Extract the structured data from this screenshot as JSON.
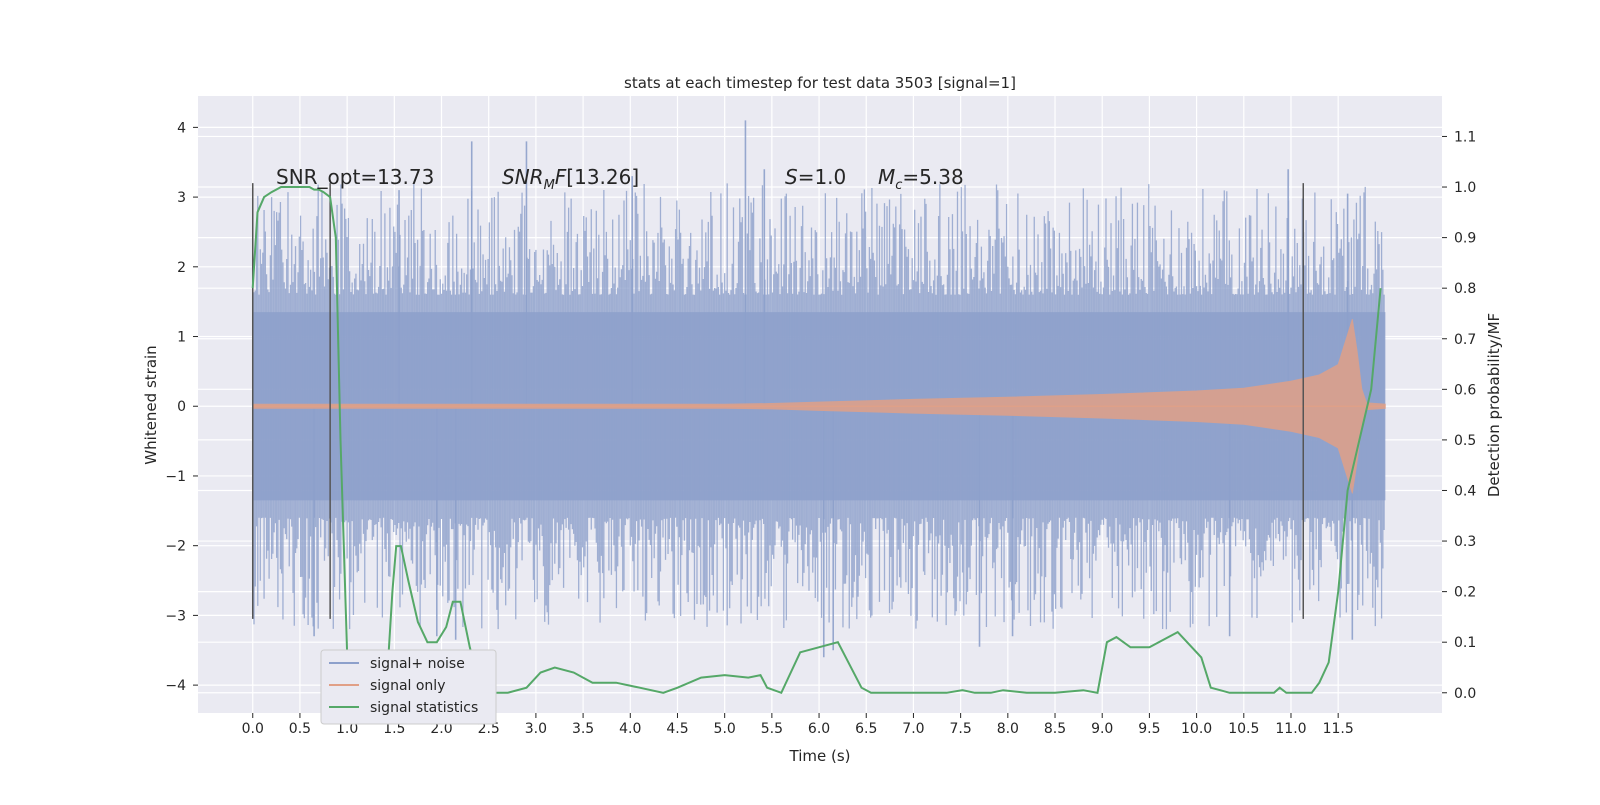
{
  "chart_data": {
    "type": "line",
    "title": "stats at each timestep for test data 3503 [signal=1]",
    "xlabel": "Time (s)",
    "ylabel": "Whitened strain",
    "ylabel_right": "Detection probability/MF",
    "xlim": [
      -0.58,
      12.6
    ],
    "ylim": [
      -4.4,
      4.45
    ],
    "ylim_right": [
      -0.04,
      1.18
    ],
    "x_ticks": [
      0.0,
      0.5,
      1.0,
      1.5,
      2.0,
      2.5,
      3.0,
      3.5,
      4.0,
      4.5,
      5.0,
      5.5,
      6.0,
      6.5,
      7.0,
      7.5,
      8.0,
      8.5,
      9.0,
      9.5,
      10.0,
      10.5,
      11.0,
      11.5
    ],
    "x_tick_labels": [
      "0.0",
      "0.5",
      "1.0",
      "1.5",
      "2.0",
      "2.5",
      "3.0",
      "3.5",
      "4.0",
      "4.5",
      "5.0",
      "5.5",
      "6.0",
      "6.5",
      "7.0",
      "7.5",
      "8.0",
      "8.5",
      "9.0",
      "9.5",
      "10.0",
      "10.5",
      "11.0",
      "11.5"
    ],
    "y_ticks": [
      -4,
      -3,
      -2,
      -1,
      0,
      1,
      2,
      3,
      4
    ],
    "y_tick_labels": [
      "−4",
      "−3",
      "−2",
      "−1",
      "0",
      "1",
      "2",
      "3",
      "4"
    ],
    "y_right_ticks": [
      0.0,
      0.1,
      0.2,
      0.3,
      0.4,
      0.5,
      0.6,
      0.7,
      0.8,
      0.9,
      1.0,
      1.1
    ],
    "y_right_tick_labels": [
      "0.0",
      "0.1",
      "0.2",
      "0.3",
      "0.4",
      "0.5",
      "0.6",
      "0.7",
      "0.8",
      "0.9",
      "1.0",
      "1.1"
    ],
    "grid": true,
    "legend_position": "lower-left",
    "annotations": {
      "snr_opt": "SNR_opt=13.73",
      "snr_mf": "[13.26]",
      "s_value": "=1.0",
      "mc_value": "=5.38"
    },
    "vertical_markers": [
      0.0,
      0.82,
      11.13
    ],
    "vertical_marker_range": [
      -3.05,
      3.2
    ],
    "colors": {
      "noise": "#8da0cb",
      "signal": "#e1a087",
      "stats": "#55a868",
      "marker": "#555555",
      "axes_bg": "#eaeaf2"
    },
    "series": [
      {
        "name": "signal+ noise",
        "kind": "noise-band",
        "x_range": [
          0.0,
          12.0
        ],
        "envelope_min": -2.6,
        "envelope_max": 2.6,
        "peaks": [
          {
            "x": 2.32,
            "y": 3.8
          },
          {
            "x": 2.9,
            "y": 3.8
          },
          {
            "x": 5.22,
            "y": 4.1
          },
          {
            "x": 4.02,
            "y": 3.3
          },
          {
            "x": 5.42,
            "y": 3.4
          },
          {
            "x": 1.55,
            "y": 3.1
          },
          {
            "x": 10.97,
            "y": 3.4
          },
          {
            "x": 11.6,
            "y": 3.05
          },
          {
            "x": 6.05,
            "y": -3.6
          },
          {
            "x": 6.15,
            "y": -3.5
          },
          {
            "x": 7.7,
            "y": -3.45
          },
          {
            "x": 8.05,
            "y": -3.3
          },
          {
            "x": 10.35,
            "y": -3.3
          },
          {
            "x": 11.65,
            "y": -3.35
          },
          {
            "x": 1.95,
            "y": -3.3
          },
          {
            "x": 2.15,
            "y": -3.35
          },
          {
            "x": 0.65,
            "y": -3.3
          }
        ]
      },
      {
        "name": "signal only",
        "kind": "chirp",
        "x": [
          0.0,
          1.0,
          2.0,
          3.0,
          4.0,
          5.0,
          5.5,
          6.0,
          7.0,
          8.0,
          9.0,
          10.0,
          10.5,
          11.0,
          11.3,
          11.5,
          11.65,
          11.7,
          11.75,
          11.8,
          12.0
        ],
        "amplitude": [
          0.03,
          0.03,
          0.03,
          0.03,
          0.03,
          0.03,
          0.04,
          0.06,
          0.1,
          0.13,
          0.17,
          0.22,
          0.26,
          0.36,
          0.45,
          0.6,
          1.25,
          0.8,
          0.25,
          0.05,
          0.03
        ]
      },
      {
        "name": "signal statistics",
        "kind": "line",
        "x": [
          0.0,
          0.05,
          0.12,
          0.2,
          0.3,
          0.5,
          0.6,
          0.65,
          0.7,
          0.75,
          0.82,
          0.88,
          0.93,
          1.0,
          1.05,
          1.15,
          1.3,
          1.42,
          1.48,
          1.52,
          1.57,
          1.65,
          1.75,
          1.85,
          1.95,
          2.05,
          2.12,
          2.2,
          2.3,
          2.4,
          2.5,
          2.7,
          2.9,
          3.05,
          3.2,
          3.4,
          3.6,
          3.85,
          4.1,
          4.35,
          4.5,
          4.75,
          5.0,
          5.25,
          5.38,
          5.45,
          5.6,
          5.8,
          6.2,
          6.45,
          6.55,
          6.7,
          7.0,
          7.35,
          7.52,
          7.65,
          7.75,
          7.82,
          7.95,
          8.2,
          8.35,
          8.5,
          8.8,
          8.95,
          9.05,
          9.15,
          9.3,
          9.5,
          9.8,
          10.05,
          10.15,
          10.25,
          10.35,
          10.55,
          10.75,
          10.82,
          10.88,
          10.95,
          11.05,
          11.15,
          11.22,
          11.3,
          11.4,
          11.5,
          11.6,
          11.85,
          11.95
        ],
        "y": [
          0.8,
          0.95,
          0.98,
          0.99,
          1.0,
          1.0,
          1.0,
          0.995,
          0.995,
          0.99,
          0.98,
          0.9,
          0.5,
          0.08,
          0.02,
          0.0,
          0.0,
          0.02,
          0.2,
          0.29,
          0.29,
          0.22,
          0.14,
          0.1,
          0.1,
          0.13,
          0.18,
          0.18,
          0.09,
          0.02,
          0.0,
          0.0,
          0.01,
          0.04,
          0.05,
          0.04,
          0.02,
          0.02,
          0.01,
          0.0,
          0.01,
          0.03,
          0.035,
          0.03,
          0.035,
          0.01,
          0.0,
          0.08,
          0.1,
          0.01,
          0.0,
          0.0,
          0.0,
          0.0,
          0.005,
          0.0,
          0.0,
          0.0,
          0.005,
          0.0,
          0.0,
          0.0,
          0.005,
          0.0,
          0.1,
          0.11,
          0.09,
          0.09,
          0.12,
          0.07,
          0.01,
          0.005,
          0.0,
          0.0,
          0.0,
          0.0,
          0.01,
          0.0,
          0.0,
          0.0,
          0.0,
          0.02,
          0.06,
          0.2,
          0.4,
          0.6,
          0.8
        ]
      }
    ]
  }
}
